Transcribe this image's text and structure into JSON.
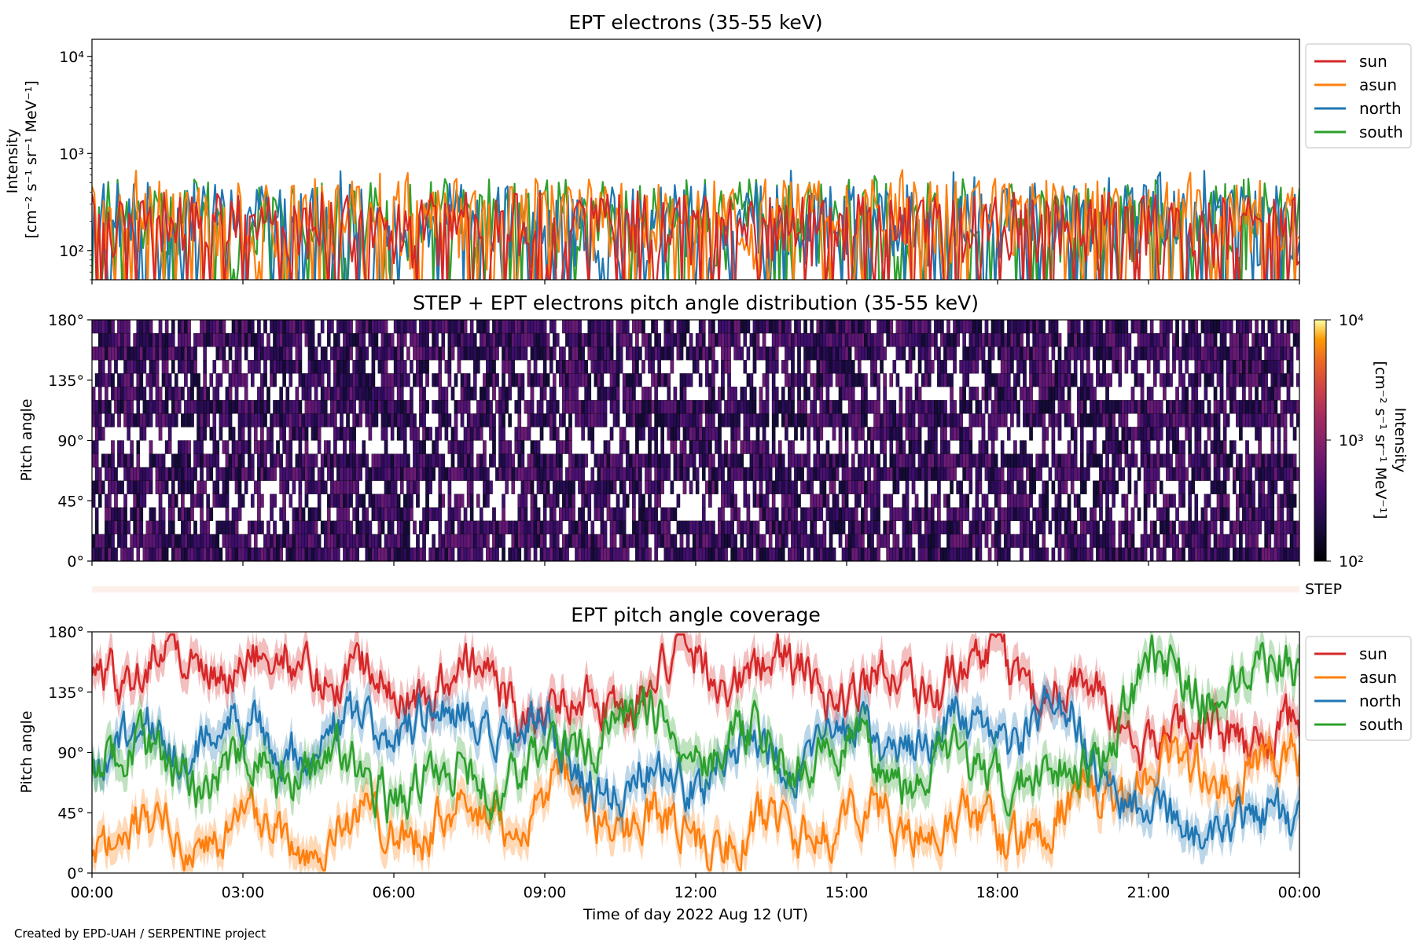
{
  "credit": "Created by EPD-UAH / SERPENTINE project",
  "xaxis": {
    "label": "Time of day 2022 Aug 12 (UT)",
    "range_hours": [
      0,
      24
    ],
    "ticks": [
      "00:00",
      "03:00",
      "06:00",
      "09:00",
      "12:00",
      "15:00",
      "18:00",
      "21:00",
      "00:00"
    ]
  },
  "colors": {
    "sun": "#d62728",
    "asun": "#ff7f0e",
    "north": "#1f77b4",
    "south": "#2ca02c",
    "step_band": "#fdf0ea"
  },
  "step_label": "STEP",
  "chart_data": [
    {
      "type": "line",
      "title": "EPT electrons (35-55 keV)",
      "ylabel": [
        "Intensity",
        "[cm⁻² s⁻¹ sr⁻¹ MeV⁻¹]"
      ],
      "yscale": "log",
      "ylim": [
        50,
        15000
      ],
      "yticks": [
        {
          "value": 100,
          "label": "10²"
        },
        {
          "value": 1000,
          "label": "10³"
        },
        {
          "value": 10000,
          "label": "10⁴"
        }
      ],
      "legend": [
        "sun",
        "asun",
        "north",
        "south"
      ],
      "legend_position": "outside-right",
      "series": [
        {
          "name": "south",
          "typical_range": [
            60,
            550
          ],
          "peak": 600
        },
        {
          "name": "north",
          "typical_range": [
            60,
            500
          ],
          "peak": 700
        },
        {
          "name": "asun",
          "typical_range": [
            60,
            550
          ],
          "peak": 750
        },
        {
          "name": "sun",
          "typical_range": [
            60,
            400
          ],
          "peak": 450
        }
      ]
    },
    {
      "type": "heatmap",
      "title": "STEP + EPT electrons pitch angle distribution (35-55 keV)",
      "ylabel": "Pitch angle",
      "ylim": [
        0,
        180
      ],
      "yticks": [
        "0°",
        "45°",
        "90°",
        "135°",
        "180°"
      ],
      "colorbar": {
        "label": [
          "Intensity",
          "[cm⁻² s⁻¹ sr⁻¹ MeV⁻¹]"
        ],
        "scale": "log",
        "range": [
          100,
          10000
        ],
        "ticks": [
          "10²",
          "10³",
          "10⁴"
        ],
        "colormap": "inferno"
      },
      "typical_intensity_range": [
        100,
        350
      ],
      "white_gaps_around_pitch": [
        45,
        90,
        135
      ]
    },
    {
      "type": "line",
      "title": "EPT pitch angle coverage",
      "ylabel": "Pitch angle",
      "ylim": [
        0,
        180
      ],
      "yticks": [
        "0°",
        "45°",
        "90°",
        "135°",
        "180°"
      ],
      "legend": [
        "sun",
        "asun",
        "north",
        "south"
      ],
      "legend_position": "outside-right",
      "shaded_band_half_width_deg": 12,
      "series": [
        {
          "name": "sun",
          "x": [
            0,
            1.5,
            3,
            4.5,
            6,
            7.5,
            9,
            10.5,
            12,
            13.5,
            15,
            16.5,
            18,
            19.5,
            21,
            22.5,
            24
          ],
          "y": [
            155,
            160,
            150,
            158,
            140,
            145,
            120,
            130,
            155,
            150,
            140,
            145,
            150,
            140,
            100,
            110,
            95
          ]
        },
        {
          "name": "asun",
          "x": [
            0,
            1.5,
            3,
            4.5,
            6,
            7.5,
            9,
            10.5,
            12,
            13.5,
            15,
            16.5,
            18,
            19.5,
            21,
            22.5,
            24
          ],
          "y": [
            30,
            25,
            35,
            25,
            40,
            35,
            55,
            45,
            25,
            30,
            40,
            35,
            30,
            40,
            80,
            70,
            85
          ]
        },
        {
          "name": "north",
          "x": [
            0,
            1.5,
            3,
            4.5,
            6,
            7.5,
            9,
            10.5,
            12,
            13.5,
            15,
            16.5,
            18,
            19.5,
            21,
            22.5,
            24
          ],
          "y": [
            90,
            100,
            110,
            95,
            115,
            110,
            100,
            60,
            80,
            90,
            95,
            100,
            105,
            110,
            40,
            30,
            40
          ]
        },
        {
          "name": "south",
          "x": [
            0,
            1.5,
            3,
            4.5,
            6,
            7.5,
            9,
            10.5,
            12,
            13.5,
            15,
            16.5,
            18,
            19.5,
            21,
            22.5,
            24
          ],
          "y": [
            90,
            80,
            70,
            85,
            65,
            70,
            80,
            120,
            100,
            90,
            85,
            80,
            75,
            70,
            150,
            140,
            160
          ]
        }
      ]
    }
  ]
}
